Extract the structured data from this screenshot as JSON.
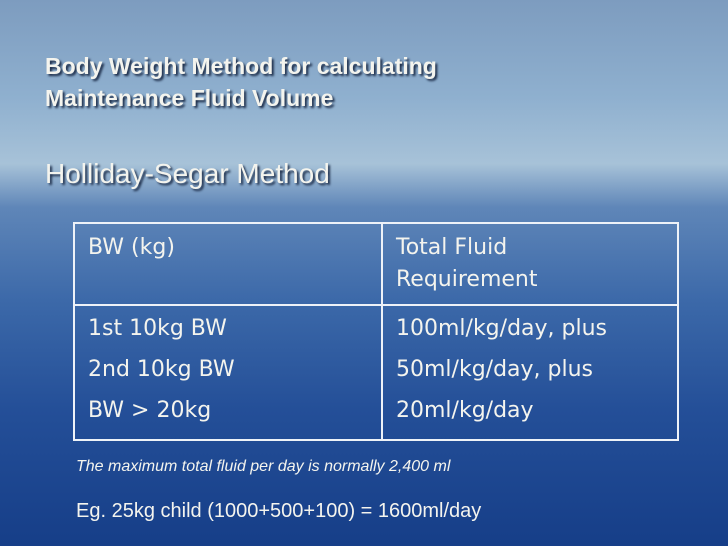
{
  "title": {
    "lines": [
      "Body Weight Method for calculating",
      "Maintenance Fluid Volume"
    ]
  },
  "subtitle": "Holliday-Segar Method",
  "table": {
    "header": [
      "BW (kg)",
      "Total Fluid Requirement"
    ],
    "rows": [
      [
        "1st 10kg BW",
        "100ml/kg/day, plus"
      ],
      [
        "2nd 10kg BW",
        "50ml/kg/day, plus"
      ],
      [
        "BW > 20kg",
        "20ml/kg/day"
      ]
    ]
  },
  "note": "The maximum total fluid per day is normally 2,400 ml",
  "example": "Eg. 25kg child (1000+500+100) = 1600ml/day"
}
